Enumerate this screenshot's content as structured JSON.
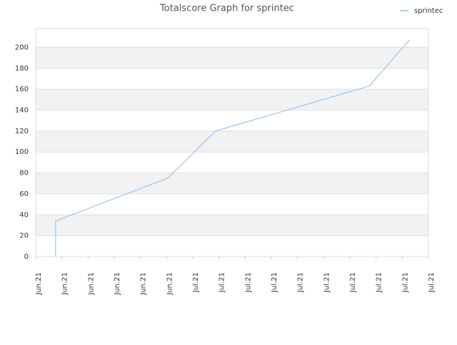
{
  "chart_data": {
    "type": "line",
    "title": "Totalscore Graph for sprintec",
    "x": [
      0.76,
      0.76,
      5.04,
      6.87,
      12.74,
      14.27
    ],
    "series": [
      {
        "name": "sprintec",
        "color": "#88bbee",
        "values": [
          0,
          34,
          75,
          120,
          163,
          207
        ]
      }
    ],
    "xlim": [
      0,
      15
    ],
    "xticks": [
      {
        "value": 0,
        "label": "Jun.21"
      },
      {
        "value": 1,
        "label": "Jun.21"
      },
      {
        "value": 2,
        "label": "Jun.21"
      },
      {
        "value": 3,
        "label": "Jun.21"
      },
      {
        "value": 4,
        "label": "Jun.21"
      },
      {
        "value": 5,
        "label": "Jun.21"
      },
      {
        "value": 6,
        "label": "Jul.21"
      },
      {
        "value": 7,
        "label": "Jul.21"
      },
      {
        "value": 8,
        "label": "Jul.21"
      },
      {
        "value": 9,
        "label": "Jul.21"
      },
      {
        "value": 10,
        "label": "Jul.21"
      },
      {
        "value": 11,
        "label": "Jul.21"
      },
      {
        "value": 12,
        "label": "Jul.21"
      },
      {
        "value": 13,
        "label": "Jul.21"
      },
      {
        "value": 14,
        "label": "Jul.21"
      },
      {
        "value": 15,
        "label": "Jul.21"
      }
    ],
    "ylim": [
      0,
      218
    ],
    "yticks": [
      0,
      20,
      40,
      60,
      80,
      100,
      120,
      140,
      160,
      180,
      200
    ],
    "grid": true,
    "legend": "top-right"
  }
}
